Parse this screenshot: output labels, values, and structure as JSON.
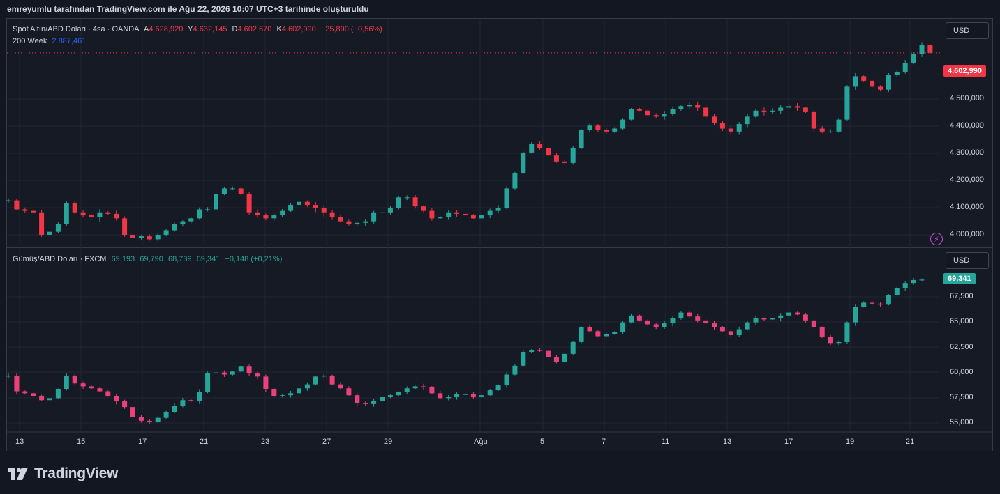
{
  "header": {
    "text": "emreyumlu tarafından TradingView.com ile Ağu 22, 2026 10:07 UTC+3 tarihinde oluşturuldu"
  },
  "brand": {
    "name": "TradingView"
  },
  "colors": {
    "up": "#26a69a",
    "down": "#f23645",
    "down_silver": "#ec407a",
    "ma": "#2962ff",
    "background": "#161a25",
    "grid": "#232632"
  },
  "icons": {
    "alert": "lightning-bolt-icon",
    "logo": "tradingview-logo-icon"
  },
  "top_pane": {
    "title": "Spot Altın/ABD Doları · 4sa · OANDA",
    "open_key": "A",
    "open": "4.628,920",
    "high_key": "Y",
    "high": "4.632,145",
    "low_key": "D",
    "low": "4.602,670",
    "close_key": "K",
    "close": "4.602,990",
    "change": "−25,890 (−0,56%)",
    "indicator_name": "200 Week",
    "indicator_value": "2.887,461",
    "unit_button": "USD",
    "last_price_tag": "4.602,990",
    "y_ticks": [
      "4.500,000",
      "4.400,000",
      "4.300,000",
      "4.200,000",
      "4.100,000",
      "4.000,000"
    ]
  },
  "bottom_pane": {
    "title": "Gümüş/ABD Doları · FXCM",
    "open": "69,193",
    "high": "69,790",
    "low": "68,739",
    "close": "69,341",
    "change": "+0,148 (+0,21%)",
    "unit_button": "USD",
    "last_price_tag": "69,341",
    "y_ticks": [
      "67,500",
      "65,000",
      "62,500",
      "60,000",
      "57,500",
      "55,000"
    ]
  },
  "x_axis": {
    "ticks": [
      "13",
      "15",
      "17",
      "21",
      "23",
      "27",
      "29",
      "Ağu",
      "5",
      "7",
      "11",
      "13",
      "17",
      "19",
      "21"
    ]
  },
  "chart_data": [
    {
      "type": "candlestick",
      "title": "Spot Altın/ABD Doları · 4sa · OANDA",
      "y_unit": "USD",
      "ylim": [
        3960000,
        4640000
      ],
      "path": [
        4110000,
        4110000,
        4080000,
        4075000,
        4070000,
        3995000,
        4005000,
        4030000,
        4100000,
        4070000,
        4060000,
        4055000,
        4070000,
        4065000,
        4050000,
        3995000,
        3985000,
        3990000,
        3980000,
        3995000,
        4010000,
        4030000,
        4040000,
        4050000,
        4080000,
        4080000,
        4130000,
        4150000,
        4150000,
        4130000,
        4070000,
        4060000,
        4050000,
        4060000,
        4075000,
        4095000,
        4105000,
        4095000,
        4085000,
        4070000,
        4055000,
        4040000,
        4030000,
        4035000,
        4040000,
        4070000,
        4070000,
        4085000,
        4120000,
        4120000,
        4090000,
        4075000,
        4050000,
        4055000,
        4070000,
        4065000,
        4060000,
        4050000,
        4060000,
        4075000,
        4085000,
        4150000,
        4200000,
        4270000,
        4300000,
        4285000,
        4260000,
        4240000,
        4235000,
        4285000,
        4345000,
        4360000,
        4345000,
        4340000,
        4350000,
        4380000,
        4415000,
        4410000,
        4395000,
        4390000,
        4400000,
        4415000,
        4425000,
        4430000,
        4420000,
        4390000,
        4370000,
        4350000,
        4340000,
        4365000,
        4390000,
        4410000,
        4405000,
        4410000,
        4420000,
        4425000,
        4420000,
        4405000,
        4350000,
        4340000,
        4340000,
        4380000,
        4490000,
        4525000,
        4510000,
        4490000,
        4480000,
        4530000,
        4540000,
        4570000,
        4600000,
        4628920,
        4602990
      ],
      "last_close": 4602990
    },
    {
      "type": "candlestick",
      "title": "Gümüş/ABD Doları · FXCM",
      "y_unit": "USD",
      "ylim": [
        54000,
        70500
      ],
      "path": [
        59500,
        59600,
        58000,
        57800,
        57500,
        57100,
        57300,
        58200,
        59600,
        58800,
        58500,
        58300,
        58000,
        57500,
        57000,
        56400,
        55400,
        55000,
        54900,
        55300,
        55900,
        56500,
        57100,
        57000,
        57900,
        59800,
        59900,
        59700,
        60000,
        60500,
        59800,
        59500,
        58200,
        57500,
        57600,
        57800,
        58300,
        58700,
        59500,
        59600,
        58700,
        58300,
        57600,
        56800,
        56700,
        57000,
        57400,
        57600,
        57900,
        58300,
        58500,
        58400,
        57800,
        57300,
        57400,
        57700,
        57700,
        57400,
        57600,
        58100,
        58600,
        59700,
        60600,
        62000,
        62200,
        62100,
        61500,
        61000,
        61800,
        63000,
        64500,
        64100,
        63600,
        63800,
        64000,
        65000,
        65700,
        65200,
        64800,
        64500,
        64900,
        65400,
        66000,
        65600,
        65200,
        64900,
        64500,
        64100,
        63700,
        64300,
        65000,
        65400,
        65300,
        65400,
        65700,
        66000,
        65800,
        65200,
        64500,
        63500,
        62900,
        63000,
        65000,
        66600,
        67000,
        66900,
        66800,
        67800,
        68500,
        69000,
        69300,
        69341
      ],
      "last_close": 69341
    }
  ]
}
